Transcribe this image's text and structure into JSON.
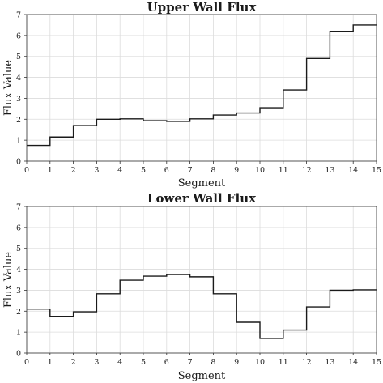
{
  "chart_data": [
    {
      "type": "line",
      "drawstyle": "steps",
      "title": "Upper Wall Flux",
      "xlabel": "Segment",
      "ylabel": "Flux Value",
      "xlim": [
        0,
        15
      ],
      "ylim": [
        0,
        7
      ],
      "xticks": [
        0,
        1,
        2,
        3,
        4,
        5,
        6,
        7,
        8,
        9,
        10,
        11,
        12,
        13,
        14,
        15
      ],
      "yticks": [
        0,
        1,
        2,
        3,
        4,
        5,
        6,
        7
      ],
      "grid": true,
      "segment_edges": [
        0,
        1,
        2,
        3,
        4,
        5,
        6,
        7,
        8,
        9,
        10,
        11,
        12,
        13,
        14,
        15
      ],
      "values": [
        0.75,
        1.15,
        1.7,
        2.0,
        2.02,
        1.93,
        1.9,
        2.02,
        2.2,
        2.3,
        2.55,
        3.4,
        4.9,
        6.2,
        6.5
      ]
    },
    {
      "type": "line",
      "drawstyle": "steps",
      "title": "Lower Wall Flux",
      "xlabel": "Segment",
      "ylabel": "Flux Value",
      "xlim": [
        0,
        15
      ],
      "ylim": [
        0,
        7
      ],
      "xticks": [
        0,
        1,
        2,
        3,
        4,
        5,
        6,
        7,
        8,
        9,
        10,
        11,
        12,
        13,
        14,
        15
      ],
      "yticks": [
        0,
        1,
        2,
        3,
        4,
        5,
        6,
        7
      ],
      "grid": true,
      "segment_edges": [
        0,
        1,
        2,
        3,
        4,
        5,
        6,
        7,
        8,
        9,
        10,
        11,
        12,
        13,
        14,
        15
      ],
      "values": [
        2.1,
        1.75,
        1.97,
        2.83,
        3.48,
        3.67,
        3.75,
        3.64,
        2.83,
        1.47,
        0.7,
        1.1,
        2.2,
        3.0,
        3.02
      ]
    }
  ]
}
